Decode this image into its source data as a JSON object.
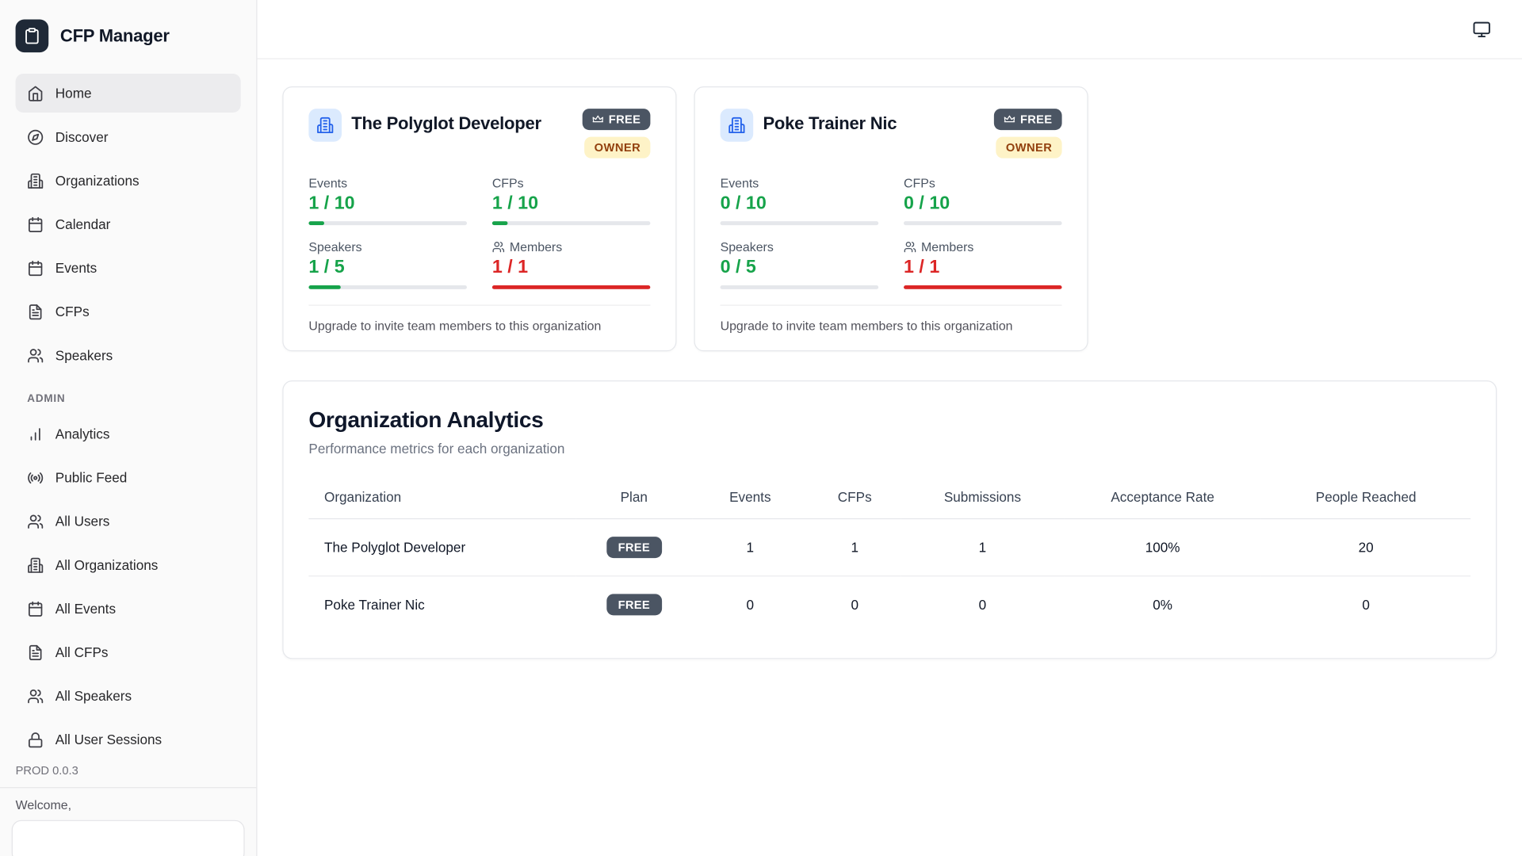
{
  "app": {
    "title": "CFP Manager",
    "version": "PROD 0.0.3",
    "welcome": "Welcome,"
  },
  "colors": {
    "green": "#16a34a",
    "red": "#dc2626",
    "accent_blue": "#2563eb",
    "badge_dark": "#4b5563",
    "owner_bg": "#fef3c7",
    "owner_text": "#92400e"
  },
  "sidebar": {
    "items": [
      {
        "label": "Home",
        "icon": "home",
        "active": true
      },
      {
        "label": "Discover",
        "icon": "compass",
        "active": false
      },
      {
        "label": "Organizations",
        "icon": "building",
        "active": false
      },
      {
        "label": "Calendar",
        "icon": "calendar",
        "active": false
      },
      {
        "label": "Events",
        "icon": "calendar",
        "active": false
      },
      {
        "label": "CFPs",
        "icon": "file",
        "active": false
      },
      {
        "label": "Speakers",
        "icon": "users",
        "active": false
      }
    ],
    "admin_label": "ADMIN",
    "admin_items": [
      {
        "label": "Analytics",
        "icon": "chart"
      },
      {
        "label": "Public Feed",
        "icon": "radio"
      },
      {
        "label": "All Users",
        "icon": "users"
      },
      {
        "label": "All Organizations",
        "icon": "building"
      },
      {
        "label": "All Events",
        "icon": "calendar"
      },
      {
        "label": "All CFPs",
        "icon": "file"
      },
      {
        "label": "All Speakers",
        "icon": "users"
      },
      {
        "label": "All User Sessions",
        "icon": "lock"
      }
    ]
  },
  "topbar": {
    "display_button_icon": "monitor"
  },
  "org_cards": [
    {
      "name": "The Polyglot Developer",
      "plan_badge": "FREE",
      "role_badge": "OWNER",
      "stats": [
        {
          "label": "Events",
          "value": "1 / 10",
          "pct": 10,
          "color": "green",
          "icon": ""
        },
        {
          "label": "CFPs",
          "value": "1 / 10",
          "pct": 10,
          "color": "green",
          "icon": ""
        },
        {
          "label": "Speakers",
          "value": "1 / 5",
          "pct": 20,
          "color": "green",
          "icon": ""
        },
        {
          "label": "Members",
          "value": "1 / 1",
          "pct": 100,
          "color": "red",
          "icon": "users"
        }
      ],
      "footer": "Upgrade to invite team members to this organization"
    },
    {
      "name": "Poke Trainer Nic",
      "plan_badge": "FREE",
      "role_badge": "OWNER",
      "stats": [
        {
          "label": "Events",
          "value": "0 / 10",
          "pct": 0,
          "color": "green",
          "icon": ""
        },
        {
          "label": "CFPs",
          "value": "0 / 10",
          "pct": 0,
          "color": "green",
          "icon": ""
        },
        {
          "label": "Speakers",
          "value": "0 / 5",
          "pct": 0,
          "color": "green",
          "icon": ""
        },
        {
          "label": "Members",
          "value": "1 / 1",
          "pct": 100,
          "color": "red",
          "icon": "users"
        }
      ],
      "footer": "Upgrade to invite team members to this organization"
    }
  ],
  "analytics": {
    "title": "Organization Analytics",
    "subtitle": "Performance metrics for each organization",
    "columns": [
      "Organization",
      "Plan",
      "Events",
      "CFPs",
      "Submissions",
      "Acceptance Rate",
      "People Reached"
    ],
    "rows": [
      {
        "organization": "The Polyglot Developer",
        "plan": "FREE",
        "events": "1",
        "cfps": "1",
        "submissions": "1",
        "acceptance_rate": "100%",
        "people_reached": "20"
      },
      {
        "organization": "Poke Trainer Nic",
        "plan": "FREE",
        "events": "0",
        "cfps": "0",
        "submissions": "0",
        "acceptance_rate": "0%",
        "people_reached": "0"
      }
    ]
  }
}
